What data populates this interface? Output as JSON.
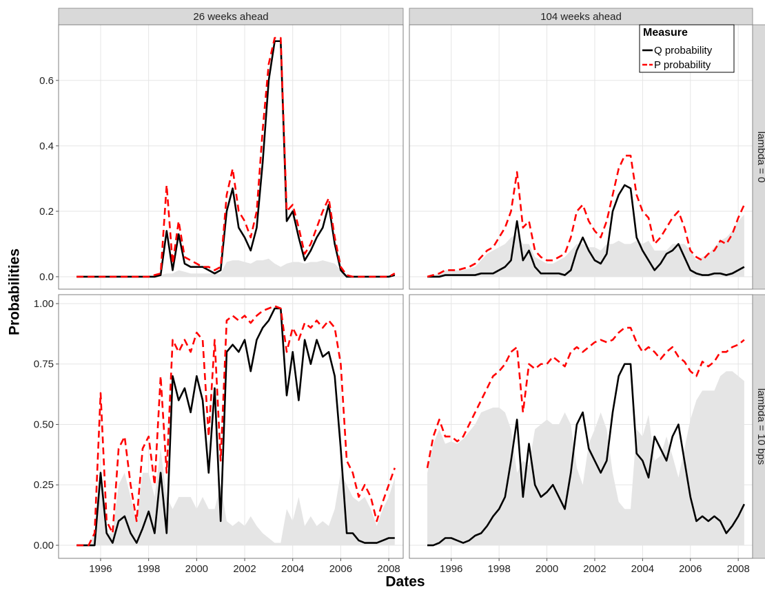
{
  "chart_data": {
    "type": "line",
    "x_label": "Dates",
    "y_label": "Probabilities",
    "legend_title": "Measure",
    "legend_position": "top-right",
    "grid": true,
    "columns": [
      "26 weeks ahead",
      "104 weeks ahead"
    ],
    "series": [
      {
        "name": "Q probability",
        "color": "#000000",
        "dashed": false
      },
      {
        "name": "P probability",
        "color": "#ff0000",
        "dashed": true
      }
    ],
    "area_color": "#e5e5e5",
    "x": [
      1995,
      1995.25,
      1995.5,
      1995.75,
      1996,
      1996.25,
      1996.5,
      1996.75,
      1997,
      1997.25,
      1997.5,
      1997.75,
      1998,
      1998.25,
      1998.5,
      1998.75,
      1999,
      1999.25,
      1999.5,
      1999.75,
      2000,
      2000.25,
      2000.5,
      2000.75,
      2001,
      2001.25,
      2001.5,
      2001.75,
      2002,
      2002.25,
      2002.5,
      2002.75,
      2003,
      2003.25,
      2003.5,
      2003.75,
      2004,
      2004.25,
      2004.5,
      2004.75,
      2005,
      2005.25,
      2005.5,
      2005.75,
      2006,
      2006.25,
      2006.5,
      2006.75,
      2007,
      2007.25,
      2007.5,
      2007.75,
      2008,
      2008.25
    ],
    "xlim": [
      1994.25,
      2008.6
    ],
    "xticks": [
      1996,
      1998,
      2000,
      2002,
      2004,
      2006,
      2008
    ],
    "rows": [
      {
        "label": "lambda = 0",
        "ylim": [
          -0.038,
          0.77
        ],
        "yticks": [
          {
            "value": 0,
            "label": "0.0"
          },
          0.2,
          0.4,
          0.6
        ],
        "panels": [
          {
            "series_values": [
              [
                0,
                0,
                0,
                0,
                0,
                0,
                0,
                0,
                0,
                0,
                0,
                0,
                0,
                0,
                0.005,
                0.14,
                0.02,
                0.13,
                0.04,
                0.03,
                0.03,
                0.03,
                0.02,
                0.01,
                0.02,
                0.2,
                0.27,
                0.15,
                0.12,
                0.08,
                0.15,
                0.35,
                0.6,
                0.72,
                0.72,
                0.17,
                0.2,
                0.12,
                0.05,
                0.08,
                0.12,
                0.15,
                0.22,
                0.1,
                0.02,
                0,
                0,
                0,
                0,
                0,
                0,
                0,
                0,
                0.005
              ],
              [
                0,
                0,
                0,
                0,
                0,
                0,
                0,
                0,
                0,
                0,
                0,
                0,
                0,
                0.005,
                0.01,
                0.28,
                0.04,
                0.17,
                0.06,
                0.05,
                0.04,
                0.03,
                0.03,
                0.02,
                0.03,
                0.25,
                0.33,
                0.2,
                0.17,
                0.12,
                0.2,
                0.45,
                0.65,
                0.73,
                0.73,
                0.2,
                0.22,
                0.15,
                0.07,
                0.1,
                0.15,
                0.2,
                0.24,
                0.12,
                0.03,
                0.005,
                0,
                0,
                0,
                0,
                0,
                0,
                0,
                0.01
              ]
            ],
            "area": [
              0,
              0,
              0,
              0,
              0,
              0,
              0,
              0,
              0,
              0,
              0,
              0,
              0,
              0,
              0.005,
              0.01,
              0.01,
              0.02,
              0.015,
              0.01,
              0.01,
              0.01,
              0.01,
              0.01,
              0.01,
              0.045,
              0.05,
              0.05,
              0.045,
              0.04,
              0.05,
              0.05,
              0.055,
              0.04,
              0.03,
              0.04,
              0.045,
              0.045,
              0.04,
              0.045,
              0.045,
              0.05,
              0.045,
              0.04,
              0.02,
              0.005,
              0,
              0,
              0,
              0,
              0,
              0,
              0,
              0
            ]
          },
          {
            "series_values": [
              [
                0,
                0,
                0,
                0.005,
                0.005,
                0.005,
                0.005,
                0.005,
                0.005,
                0.01,
                0.01,
                0.01,
                0.02,
                0.03,
                0.05,
                0.17,
                0.05,
                0.08,
                0.03,
                0.01,
                0.01,
                0.01,
                0.01,
                0.005,
                0.02,
                0.08,
                0.12,
                0.08,
                0.05,
                0.04,
                0.07,
                0.2,
                0.25,
                0.28,
                0.27,
                0.12,
                0.08,
                0.05,
                0.02,
                0.04,
                0.07,
                0.08,
                0.1,
                0.06,
                0.02,
                0.01,
                0.005,
                0.005,
                0.01,
                0.01,
                0.005,
                0.01,
                0.02,
                0.03
              ],
              [
                0,
                0.005,
                0.01,
                0.02,
                0.02,
                0.02,
                0.025,
                0.03,
                0.04,
                0.06,
                0.08,
                0.09,
                0.12,
                0.15,
                0.2,
                0.32,
                0.15,
                0.17,
                0.08,
                0.06,
                0.05,
                0.05,
                0.06,
                0.07,
                0.12,
                0.2,
                0.22,
                0.17,
                0.14,
                0.12,
                0.17,
                0.25,
                0.33,
                0.37,
                0.37,
                0.25,
                0.2,
                0.18,
                0.1,
                0.12,
                0.15,
                0.18,
                0.2,
                0.15,
                0.08,
                0.06,
                0.05,
                0.07,
                0.08,
                0.11,
                0.1,
                0.13,
                0.18,
                0.22
              ]
            ],
            "area": [
              0,
              0.005,
              0.01,
              0.02,
              0.02,
              0.02,
              0.02,
              0.025,
              0.03,
              0.05,
              0.07,
              0.08,
              0.09,
              0.1,
              0.12,
              0.13,
              0.1,
              0.1,
              0.06,
              0.05,
              0.04,
              0.04,
              0.05,
              0.06,
              0.08,
              0.1,
              0.1,
              0.09,
              0.09,
              0.08,
              0.1,
              0.1,
              0.11,
              0.1,
              0.1,
              0.11,
              0.1,
              0.11,
              0.08,
              0.08,
              0.08,
              0.1,
              0.1,
              0.1,
              0.08,
              0.05,
              0.06,
              0.07,
              0.09,
              0.11,
              0.12,
              0.14,
              0.17,
              0.19
            ]
          }
        ]
      },
      {
        "label": "lambda = 10 bps",
        "ylim": [
          -0.054,
          1.037
        ],
        "yticks": [
          {
            "value": 0,
            "label": "0.00"
          },
          0.25,
          {
            "value": 0.5,
            "label": "0.50"
          },
          0.75,
          {
            "value": 1,
            "label": "1.00"
          }
        ],
        "panels": [
          {
            "series_values": [
              [
                0,
                0,
                0,
                0,
                0.3,
                0.05,
                0.01,
                0.1,
                0.12,
                0.05,
                0.01,
                0.07,
                0.14,
                0.05,
                0.3,
                0.05,
                0.7,
                0.6,
                0.65,
                0.55,
                0.7,
                0.6,
                0.3,
                0.65,
                0.1,
                0.8,
                0.83,
                0.8,
                0.85,
                0.72,
                0.85,
                0.9,
                0.93,
                0.98,
                0.98,
                0.62,
                0.8,
                0.6,
                0.85,
                0.75,
                0.85,
                0.78,
                0.8,
                0.7,
                0.4,
                0.05,
                0.05,
                0.02,
                0.01,
                0.01,
                0.01,
                0.02,
                0.03,
                0.03
              ],
              [
                0,
                0,
                0,
                0.05,
                0.63,
                0.1,
                0.05,
                0.4,
                0.45,
                0.25,
                0.1,
                0.4,
                0.45,
                0.25,
                0.7,
                0.3,
                0.85,
                0.8,
                0.85,
                0.8,
                0.88,
                0.85,
                0.45,
                0.85,
                0.35,
                0.93,
                0.95,
                0.93,
                0.95,
                0.92,
                0.95,
                0.97,
                0.98,
                0.99,
                0.98,
                0.8,
                0.9,
                0.85,
                0.92,
                0.9,
                0.93,
                0.9,
                0.93,
                0.9,
                0.75,
                0.35,
                0.3,
                0.2,
                0.25,
                0.2,
                0.1,
                0.18,
                0.25,
                0.32
              ]
            ],
            "area": [
              0,
              0,
              0,
              0.05,
              0.3,
              0.05,
              0.05,
              0.25,
              0.3,
              0.2,
              0.1,
              0.3,
              0.3,
              0.2,
              0.4,
              0.2,
              0.15,
              0.2,
              0.2,
              0.2,
              0.15,
              0.2,
              0.15,
              0.15,
              0.25,
              0.1,
              0.08,
              0.1,
              0.08,
              0.12,
              0.08,
              0.05,
              0.03,
              0.01,
              0.01,
              0.15,
              0.1,
              0.2,
              0.08,
              0.12,
              0.08,
              0.1,
              0.08,
              0.15,
              0.3,
              0.25,
              0.2,
              0.18,
              0.2,
              0.15,
              0.08,
              0.15,
              0.2,
              0.28
            ]
          },
          {
            "series_values": [
              [
                0,
                0,
                0.01,
                0.03,
                0.03,
                0.02,
                0.01,
                0.02,
                0.04,
                0.05,
                0.08,
                0.12,
                0.15,
                0.2,
                0.35,
                0.52,
                0.2,
                0.42,
                0.25,
                0.2,
                0.22,
                0.25,
                0.2,
                0.15,
                0.3,
                0.5,
                0.55,
                0.4,
                0.35,
                0.3,
                0.35,
                0.55,
                0.7,
                0.75,
                0.75,
                0.38,
                0.35,
                0.28,
                0.45,
                0.4,
                0.35,
                0.45,
                0.5,
                0.35,
                0.2,
                0.1,
                0.12,
                0.1,
                0.12,
                0.1,
                0.05,
                0.08,
                0.12,
                0.17
              ],
              [
                0.32,
                0.45,
                0.52,
                0.45,
                0.45,
                0.43,
                0.45,
                0.5,
                0.55,
                0.6,
                0.65,
                0.7,
                0.72,
                0.75,
                0.8,
                0.82,
                0.55,
                0.75,
                0.73,
                0.75,
                0.75,
                0.78,
                0.76,
                0.74,
                0.8,
                0.82,
                0.8,
                0.82,
                0.84,
                0.85,
                0.84,
                0.85,
                0.88,
                0.9,
                0.9,
                0.84,
                0.8,
                0.82,
                0.8,
                0.77,
                0.8,
                0.82,
                0.78,
                0.76,
                0.72,
                0.7,
                0.76,
                0.74,
                0.76,
                0.8,
                0.8,
                0.82,
                0.83,
                0.85
              ]
            ],
            "area": [
              0.3,
              0.42,
              0.48,
              0.42,
              0.43,
              0.42,
              0.44,
              0.47,
              0.5,
              0.55,
              0.56,
              0.57,
              0.57,
              0.55,
              0.48,
              0.3,
              0.35,
              0.33,
              0.48,
              0.5,
              0.52,
              0.5,
              0.5,
              0.55,
              0.5,
              0.32,
              0.25,
              0.42,
              0.48,
              0.55,
              0.48,
              0.3,
              0.18,
              0.15,
              0.15,
              0.48,
              0.45,
              0.54,
              0.35,
              0.37,
              0.45,
              0.37,
              0.28,
              0.4,
              0.52,
              0.6,
              0.64,
              0.64,
              0.64,
              0.7,
              0.72,
              0.72,
              0.7,
              0.68
            ]
          }
        ]
      }
    ]
  }
}
